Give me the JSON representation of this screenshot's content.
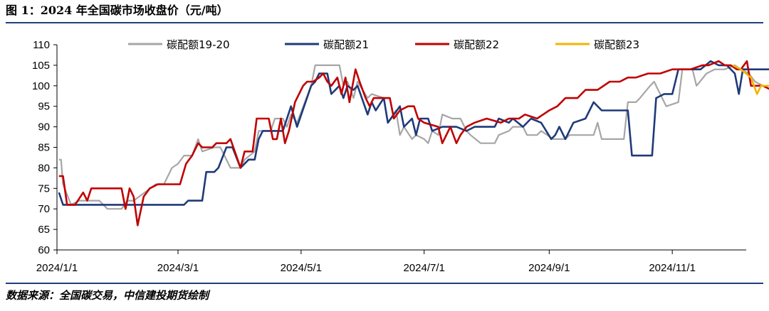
{
  "figure": {
    "title": "图 1：2024 年全国碳市场收盘价（元/吨）",
    "source": "数据来源：全国碳交易，中信建投期货绘制"
  },
  "colors": {
    "rule": "#1F3F7A",
    "axis": "#000000"
  },
  "chart_data": {
    "type": "line",
    "title": "",
    "xlabel": "",
    "ylabel": "",
    "xlim": [
      "2024-01-01",
      "2024-12-20"
    ],
    "ylim": [
      60,
      110
    ],
    "yticks": [
      60,
      65,
      70,
      75,
      80,
      85,
      90,
      95,
      100,
      105,
      110
    ],
    "xticks": [
      "2024-01-01",
      "2024-03-01",
      "2024-05-01",
      "2024-07-01",
      "2024-09-01",
      "2024-11-01"
    ],
    "xtick_labels": [
      "2024/1/1",
      "2024/3/1",
      "2024/5/1",
      "2024/7/1",
      "2024/9/1",
      "2024/11/1"
    ],
    "grid": false,
    "legend_position": "top",
    "series": [
      {
        "name": "碳配额19-20",
        "color": "#A6A6A6",
        "points": [
          [
            "2024-01-02",
            82
          ],
          [
            "2024-01-03",
            82
          ],
          [
            "2024-01-04",
            76
          ],
          [
            "2024-01-08",
            71
          ],
          [
            "2024-01-12",
            72
          ],
          [
            "2024-01-16",
            72
          ],
          [
            "2024-01-22",
            72
          ],
          [
            "2024-01-26",
            70
          ],
          [
            "2024-02-02",
            70
          ],
          [
            "2024-02-05",
            72
          ],
          [
            "2024-02-08",
            72
          ],
          [
            "2024-02-19",
            76
          ],
          [
            "2024-02-23",
            76
          ],
          [
            "2024-02-27",
            80
          ],
          [
            "2024-03-01",
            81
          ],
          [
            "2024-03-04",
            83
          ],
          [
            "2024-03-08",
            83
          ],
          [
            "2024-03-11",
            87
          ],
          [
            "2024-03-13",
            84
          ],
          [
            "2024-03-19",
            85
          ],
          [
            "2024-03-22",
            85
          ],
          [
            "2024-03-27",
            80
          ],
          [
            "2024-04-01",
            80
          ],
          [
            "2024-04-03",
            82
          ],
          [
            "2024-04-08",
            84
          ],
          [
            "2024-04-10",
            89
          ],
          [
            "2024-04-16",
            89
          ],
          [
            "2024-04-18",
            92
          ],
          [
            "2024-04-22",
            92
          ],
          [
            "2024-04-24",
            90
          ],
          [
            "2024-04-26",
            93
          ],
          [
            "2024-04-29",
            91
          ],
          [
            "2024-05-06",
            100
          ],
          [
            "2024-05-08",
            105
          ],
          [
            "2024-05-20",
            105
          ],
          [
            "2024-05-22",
            100
          ],
          [
            "2024-05-24",
            101
          ],
          [
            "2024-05-27",
            97
          ],
          [
            "2024-05-29",
            101
          ],
          [
            "2024-06-03",
            97
          ],
          [
            "2024-06-05",
            98
          ],
          [
            "2024-06-11",
            97
          ],
          [
            "2024-06-13",
            91
          ],
          [
            "2024-06-17",
            94
          ],
          [
            "2024-06-19",
            88
          ],
          [
            "2024-06-21",
            90
          ],
          [
            "2024-06-25",
            87
          ],
          [
            "2024-06-27",
            88
          ],
          [
            "2024-07-01",
            87
          ],
          [
            "2024-07-03",
            86
          ],
          [
            "2024-07-05",
            89
          ],
          [
            "2024-07-08",
            88
          ],
          [
            "2024-07-10",
            93
          ],
          [
            "2024-07-15",
            92
          ],
          [
            "2024-07-19",
            92
          ],
          [
            "2024-07-22",
            89
          ],
          [
            "2024-07-24",
            88
          ],
          [
            "2024-07-29",
            86
          ],
          [
            "2024-08-05",
            86
          ],
          [
            "2024-08-07",
            88
          ],
          [
            "2024-08-12",
            89
          ],
          [
            "2024-08-14",
            90
          ],
          [
            "2024-08-19",
            90
          ],
          [
            "2024-08-21",
            88
          ],
          [
            "2024-08-26",
            88
          ],
          [
            "2024-08-28",
            89
          ],
          [
            "2024-09-03",
            87
          ],
          [
            "2024-09-09",
            87
          ],
          [
            "2024-09-11",
            88
          ],
          [
            "2024-09-23",
            88
          ],
          [
            "2024-09-25",
            91
          ],
          [
            "2024-09-27",
            87
          ],
          [
            "2024-10-08",
            87
          ],
          [
            "2024-10-10",
            96
          ],
          [
            "2024-10-14",
            96
          ],
          [
            "2024-10-16",
            97
          ],
          [
            "2024-10-21",
            100
          ],
          [
            "2024-10-23",
            101
          ],
          [
            "2024-10-25",
            99
          ],
          [
            "2024-10-29",
            95
          ],
          [
            "2024-11-04",
            96
          ],
          [
            "2024-11-06",
            104
          ],
          [
            "2024-11-11",
            104
          ],
          [
            "2024-11-13",
            100
          ],
          [
            "2024-11-18",
            103
          ],
          [
            "2024-11-22",
            104
          ],
          [
            "2024-11-27",
            104
          ],
          [
            "2024-12-02",
            105
          ],
          [
            "2024-12-05",
            104
          ],
          [
            "2024-12-09",
            103
          ],
          [
            "2024-12-12",
            101
          ],
          [
            "2024-12-16",
            100
          ],
          [
            "2024-12-20",
            100
          ]
        ]
      },
      {
        "name": "碳配额21",
        "color": "#1F3A7A",
        "points": [
          [
            "2024-01-02",
            74
          ],
          [
            "2024-01-04",
            71
          ],
          [
            "2024-01-08",
            71
          ],
          [
            "2024-01-10",
            71
          ],
          [
            "2024-03-04",
            71
          ],
          [
            "2024-03-06",
            72
          ],
          [
            "2024-03-13",
            72
          ],
          [
            "2024-03-15",
            79
          ],
          [
            "2024-03-19",
            79
          ],
          [
            "2024-03-21",
            80
          ],
          [
            "2024-03-25",
            85
          ],
          [
            "2024-03-28",
            85
          ],
          [
            "2024-04-01",
            80
          ],
          [
            "2024-04-03",
            81
          ],
          [
            "2024-04-05",
            82
          ],
          [
            "2024-04-08",
            82
          ],
          [
            "2024-04-10",
            87
          ],
          [
            "2024-04-12",
            89
          ],
          [
            "2024-04-22",
            89
          ],
          [
            "2024-04-24",
            92
          ],
          [
            "2024-04-26",
            95
          ],
          [
            "2024-04-29",
            90
          ],
          [
            "2024-05-06",
            100
          ],
          [
            "2024-05-08",
            101
          ],
          [
            "2024-05-10",
            103
          ],
          [
            "2024-05-14",
            103
          ],
          [
            "2024-05-16",
            98
          ],
          [
            "2024-05-20",
            100
          ],
          [
            "2024-05-22",
            97
          ],
          [
            "2024-05-24",
            100
          ],
          [
            "2024-05-27",
            99
          ],
          [
            "2024-05-29",
            100
          ],
          [
            "2024-06-03",
            93
          ],
          [
            "2024-06-05",
            96
          ],
          [
            "2024-06-07",
            94
          ],
          [
            "2024-06-11",
            97
          ],
          [
            "2024-06-13",
            91
          ],
          [
            "2024-06-19",
            95
          ],
          [
            "2024-06-21",
            90
          ],
          [
            "2024-06-25",
            92
          ],
          [
            "2024-06-27",
            88
          ],
          [
            "2024-06-29",
            92
          ],
          [
            "2024-07-03",
            92
          ],
          [
            "2024-07-05",
            89
          ],
          [
            "2024-07-10",
            90
          ],
          [
            "2024-07-15",
            90
          ],
          [
            "2024-07-17",
            90
          ],
          [
            "2024-07-22",
            89
          ],
          [
            "2024-07-26",
            90
          ],
          [
            "2024-08-05",
            90
          ],
          [
            "2024-08-07",
            92
          ],
          [
            "2024-08-12",
            91
          ],
          [
            "2024-08-14",
            92
          ],
          [
            "2024-08-19",
            90
          ],
          [
            "2024-08-23",
            92
          ],
          [
            "2024-08-28",
            91
          ],
          [
            "2024-09-02",
            87
          ],
          [
            "2024-09-04",
            88
          ],
          [
            "2024-09-06",
            90
          ],
          [
            "2024-09-09",
            87
          ],
          [
            "2024-09-13",
            91
          ],
          [
            "2024-09-19",
            92
          ],
          [
            "2024-09-23",
            96
          ],
          [
            "2024-09-27",
            94
          ],
          [
            "2024-10-10",
            94
          ],
          [
            "2024-10-12",
            83
          ],
          [
            "2024-10-22",
            83
          ],
          [
            "2024-10-24",
            97
          ],
          [
            "2024-10-28",
            98
          ],
          [
            "2024-11-01",
            98
          ],
          [
            "2024-11-04",
            104
          ],
          [
            "2024-11-08",
            104
          ],
          [
            "2024-11-12",
            104
          ],
          [
            "2024-11-15",
            104
          ],
          [
            "2024-11-20",
            106
          ],
          [
            "2024-11-24",
            105
          ],
          [
            "2024-11-28",
            105
          ],
          [
            "2024-12-02",
            103
          ],
          [
            "2024-12-04",
            98
          ],
          [
            "2024-12-06",
            104
          ],
          [
            "2024-12-20",
            104
          ]
        ]
      },
      {
        "name": "碳配额22",
        "color": "#C00000",
        "points": [
          [
            "2024-01-02",
            78
          ],
          [
            "2024-01-04",
            78
          ],
          [
            "2024-01-06",
            71
          ],
          [
            "2024-01-10",
            71
          ],
          [
            "2024-01-14",
            74
          ],
          [
            "2024-01-16",
            72
          ],
          [
            "2024-01-18",
            75
          ],
          [
            "2024-02-02",
            75
          ],
          [
            "2024-02-04",
            70
          ],
          [
            "2024-02-06",
            75
          ],
          [
            "2024-02-08",
            73
          ],
          [
            "2024-02-10",
            66
          ],
          [
            "2024-02-13",
            73
          ],
          [
            "2024-02-16",
            75
          ],
          [
            "2024-02-20",
            76
          ],
          [
            "2024-03-02",
            76
          ],
          [
            "2024-03-05",
            81
          ],
          [
            "2024-03-08",
            83
          ],
          [
            "2024-03-11",
            86
          ],
          [
            "2024-03-13",
            85
          ],
          [
            "2024-03-18",
            85
          ],
          [
            "2024-03-20",
            86
          ],
          [
            "2024-03-25",
            86
          ],
          [
            "2024-03-27",
            87
          ],
          [
            "2024-04-01",
            80
          ],
          [
            "2024-04-03",
            84
          ],
          [
            "2024-04-07",
            84
          ],
          [
            "2024-04-09",
            92
          ],
          [
            "2024-04-15",
            92
          ],
          [
            "2024-04-17",
            87
          ],
          [
            "2024-04-19",
            87
          ],
          [
            "2024-04-21",
            92
          ],
          [
            "2024-04-23",
            86
          ],
          [
            "2024-04-25",
            89
          ],
          [
            "2024-04-28",
            96
          ],
          [
            "2024-05-02",
            100
          ],
          [
            "2024-05-04",
            101
          ],
          [
            "2024-05-07",
            101
          ],
          [
            "2024-05-10",
            102
          ],
          [
            "2024-05-12",
            103
          ],
          [
            "2024-05-14",
            101
          ],
          [
            "2024-05-16",
            100
          ],
          [
            "2024-05-19",
            102
          ],
          [
            "2024-05-21",
            98
          ],
          [
            "2024-05-23",
            102
          ],
          [
            "2024-05-25",
            96
          ],
          [
            "2024-05-28",
            104
          ],
          [
            "2024-05-30",
            101
          ],
          [
            "2024-06-02",
            97
          ],
          [
            "2024-06-04",
            95
          ],
          [
            "2024-06-06",
            97
          ],
          [
            "2024-06-14",
            97
          ],
          [
            "2024-06-16",
            92
          ],
          [
            "2024-06-19",
            94
          ],
          [
            "2024-06-23",
            95
          ],
          [
            "2024-06-26",
            95
          ],
          [
            "2024-06-28",
            92
          ],
          [
            "2024-07-01",
            91
          ],
          [
            "2024-07-08",
            90
          ],
          [
            "2024-07-10",
            86
          ],
          [
            "2024-07-14",
            90
          ],
          [
            "2024-07-17",
            86
          ],
          [
            "2024-07-19",
            88
          ],
          [
            "2024-07-22",
            90
          ],
          [
            "2024-07-26",
            91
          ],
          [
            "2024-08-01",
            92
          ],
          [
            "2024-08-08",
            91
          ],
          [
            "2024-08-12",
            92
          ],
          [
            "2024-08-17",
            92
          ],
          [
            "2024-08-20",
            93
          ],
          [
            "2024-08-26",
            92
          ],
          [
            "2024-09-01",
            94
          ],
          [
            "2024-09-05",
            95
          ],
          [
            "2024-09-09",
            97
          ],
          [
            "2024-09-15",
            97
          ],
          [
            "2024-09-19",
            99
          ],
          [
            "2024-09-25",
            99
          ],
          [
            "2024-10-01",
            101
          ],
          [
            "2024-10-06",
            101
          ],
          [
            "2024-10-10",
            102
          ],
          [
            "2024-10-14",
            102
          ],
          [
            "2024-10-20",
            103
          ],
          [
            "2024-10-26",
            103
          ],
          [
            "2024-11-01",
            104
          ],
          [
            "2024-11-04",
            104
          ],
          [
            "2024-11-10",
            104
          ],
          [
            "2024-11-16",
            105
          ],
          [
            "2024-11-19",
            105
          ],
          [
            "2024-11-24",
            106
          ],
          [
            "2024-11-27",
            105
          ],
          [
            "2024-11-30",
            105
          ],
          [
            "2024-12-03",
            104
          ],
          [
            "2024-12-05",
            104
          ],
          [
            "2024-12-08",
            106
          ],
          [
            "2024-12-10",
            100
          ],
          [
            "2024-12-13",
            100
          ],
          [
            "2024-12-16",
            100
          ],
          [
            "2024-12-20",
            99
          ]
        ]
      },
      {
        "name": "碳配额23",
        "color": "#F5B400",
        "points": [
          [
            "2024-12-01",
            105
          ],
          [
            "2024-12-05",
            104
          ],
          [
            "2024-12-10",
            102
          ],
          [
            "2024-12-13",
            98
          ],
          [
            "2024-12-15",
            100
          ],
          [
            "2024-12-17",
            100
          ],
          [
            "2024-12-20",
            100
          ]
        ]
      }
    ]
  }
}
